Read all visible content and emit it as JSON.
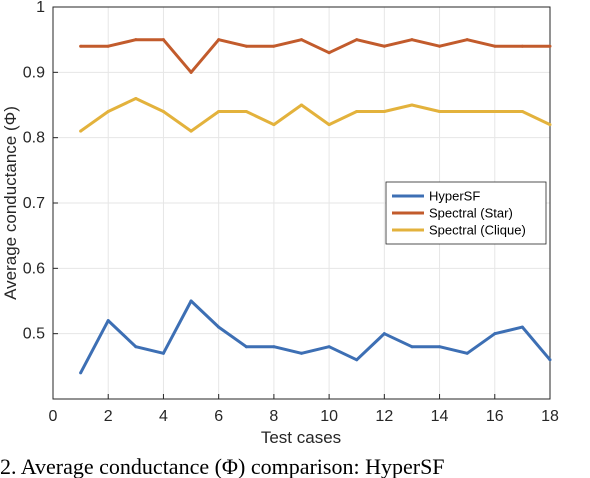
{
  "chart_data": {
    "type": "line",
    "title": "",
    "xlabel": "Test cases",
    "ylabel": "Average conductance (Φ)",
    "xlim": [
      0,
      18
    ],
    "ylim": [
      0.4,
      1.0
    ],
    "x_ticks": [
      0,
      2,
      4,
      6,
      8,
      10,
      12,
      14,
      16,
      18
    ],
    "y_ticks": [
      0.5,
      0.6,
      0.7,
      0.8,
      0.9,
      1.0
    ],
    "x_tick_labels": [
      "0",
      "2",
      "4",
      "6",
      "8",
      "10",
      "12",
      "14",
      "16",
      "18"
    ],
    "y_tick_labels": [
      "0.5",
      "0.6",
      "0.7",
      "0.8",
      "0.9",
      "1"
    ],
    "grid": true,
    "legend_position": "right",
    "x": [
      1,
      2,
      3,
      4,
      5,
      6,
      7,
      8,
      9,
      10,
      11,
      12,
      13,
      14,
      15,
      16,
      17,
      18
    ],
    "series": [
      {
        "name": "HyperSF",
        "color": "#3d6fb4",
        "values": [
          0.44,
          0.52,
          0.48,
          0.47,
          0.55,
          0.51,
          0.48,
          0.48,
          0.47,
          0.48,
          0.46,
          0.5,
          0.48,
          0.48,
          0.47,
          0.5,
          0.51,
          0.46
        ]
      },
      {
        "name": "Spectral (Star)",
        "color": "#c25b2c",
        "values": [
          0.94,
          0.94,
          0.95,
          0.95,
          0.9,
          0.95,
          0.94,
          0.94,
          0.95,
          0.93,
          0.95,
          0.94,
          0.95,
          0.94,
          0.95,
          0.94,
          0.94,
          0.94
        ]
      },
      {
        "name": "Spectral (Clique)",
        "color": "#e3b23c",
        "values": [
          0.81,
          0.84,
          0.86,
          0.84,
          0.81,
          0.84,
          0.84,
          0.82,
          0.85,
          0.82,
          0.84,
          0.84,
          0.85,
          0.84,
          0.84,
          0.84,
          0.84,
          0.82
        ]
      }
    ]
  },
  "caption": "2.  Average conductance (Φ) comparison: HyperSF"
}
